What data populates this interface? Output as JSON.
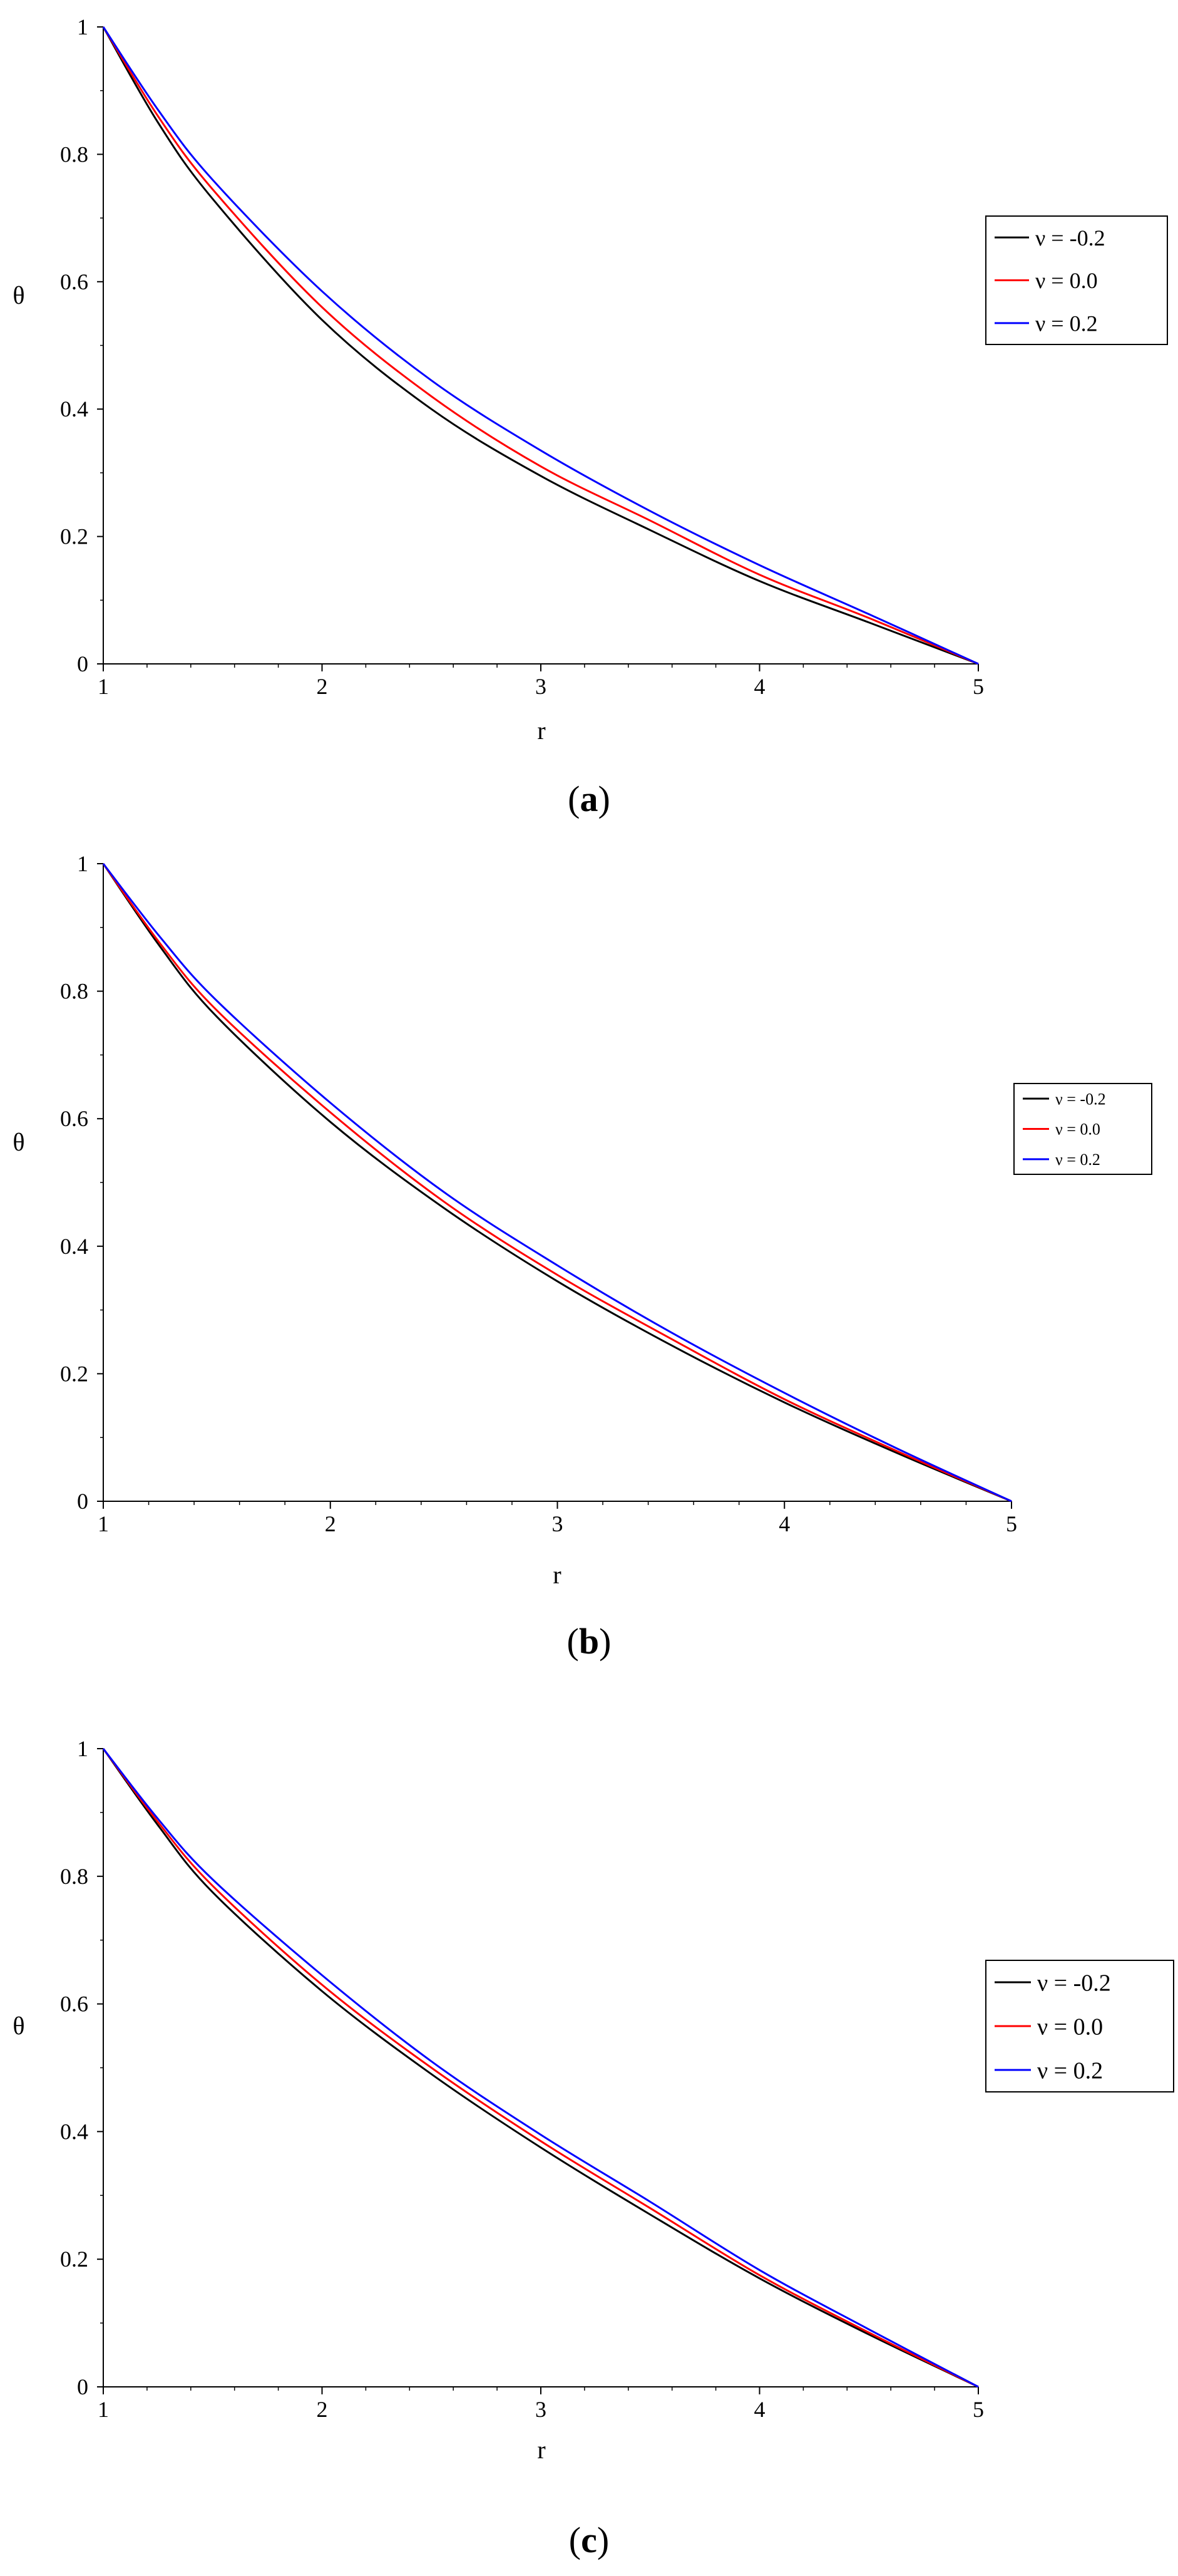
{
  "chart_data": [
    {
      "type": "line",
      "panel_label": "a",
      "xlabel": "r",
      "ylabel": "θ",
      "xlim": [
        1,
        5
      ],
      "ylim": [
        0,
        1
      ],
      "xticks": [
        "1",
        "2",
        "3",
        "4",
        "5"
      ],
      "yticks": [
        "0",
        "0.2",
        "0.4",
        "0.6",
        "0.8",
        "1"
      ],
      "grid": false,
      "legend_position": "right",
      "x": [
        1,
        1.25,
        1.5,
        2,
        2.5,
        3,
        3.5,
        4,
        4.5,
        5
      ],
      "series": [
        {
          "name": "ν = -0.2",
          "color": "#000000",
          "values": [
            1.0,
            0.85,
            0.73,
            0.54,
            0.4,
            0.295,
            0.21,
            0.13,
            0.065,
            0.0
          ]
        },
        {
          "name": "ν = 0.0",
          "color": "#ff0000",
          "values": [
            1.0,
            0.86,
            0.745,
            0.56,
            0.42,
            0.31,
            0.225,
            0.14,
            0.072,
            0.0
          ]
        },
        {
          "name": "ν = 0.2",
          "color": "#0000ff",
          "values": [
            1.0,
            0.87,
            0.76,
            0.585,
            0.445,
            0.335,
            0.24,
            0.155,
            0.078,
            0.0
          ]
        }
      ]
    },
    {
      "type": "line",
      "panel_label": "b",
      "xlabel": "r",
      "ylabel": "θ",
      "xlim": [
        1,
        5
      ],
      "ylim": [
        0,
        1
      ],
      "xticks": [
        "1",
        "2",
        "3",
        "4",
        "5"
      ],
      "yticks": [
        "0",
        "0.2",
        "0.4",
        "0.6",
        "0.8",
        "1"
      ],
      "grid": false,
      "legend_position": "right",
      "x": [
        1,
        1.25,
        1.5,
        2,
        2.5,
        3,
        3.5,
        4,
        4.5,
        5
      ],
      "series": [
        {
          "name": "ν = -0.2",
          "color": "#000000",
          "values": [
            1.0,
            0.87,
            0.76,
            0.595,
            0.46,
            0.345,
            0.245,
            0.155,
            0.075,
            0.0
          ]
        },
        {
          "name": "ν = 0.0",
          "color": "#ff0000",
          "values": [
            1.0,
            0.875,
            0.77,
            0.61,
            0.47,
            0.355,
            0.255,
            0.16,
            0.078,
            0.0
          ]
        },
        {
          "name": "ν = 0.2",
          "color": "#0000ff",
          "values": [
            1.0,
            0.885,
            0.785,
            0.625,
            0.485,
            0.37,
            0.265,
            0.17,
            0.082,
            0.0
          ]
        }
      ]
    },
    {
      "type": "line",
      "panel_label": "c",
      "xlabel": "r",
      "ylabel": "θ",
      "xlim": [
        1,
        5
      ],
      "ylim": [
        0,
        1
      ],
      "xticks": [
        "1",
        "2",
        "3",
        "4",
        "5"
      ],
      "yticks": [
        "0",
        "0.2",
        "0.4",
        "0.6",
        "0.8",
        "1"
      ],
      "grid": false,
      "legend_position": "right",
      "x": [
        1,
        1.25,
        1.5,
        2,
        2.5,
        3,
        3.5,
        4,
        4.5,
        5
      ],
      "series": [
        {
          "name": "ν = -0.2",
          "color": "#000000",
          "values": [
            1.0,
            0.88,
            0.775,
            0.62,
            0.49,
            0.375,
            0.27,
            0.17,
            0.082,
            0.0
          ]
        },
        {
          "name": "ν = 0.0",
          "color": "#ff0000",
          "values": [
            1.0,
            0.885,
            0.785,
            0.63,
            0.5,
            0.385,
            0.28,
            0.175,
            0.085,
            0.0
          ]
        },
        {
          "name": "ν = 0.2",
          "color": "#0000ff",
          "values": [
            1.0,
            0.89,
            0.795,
            0.645,
            0.51,
            0.395,
            0.29,
            0.183,
            0.09,
            0.0
          ]
        }
      ]
    }
  ]
}
